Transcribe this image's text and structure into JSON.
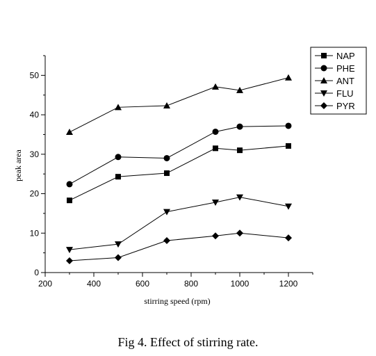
{
  "chart_data": {
    "type": "line",
    "title": "",
    "xlabel": "stirring speed (rpm)",
    "ylabel": "peak area",
    "xlim": [
      200,
      1300
    ],
    "ylim": [
      0,
      55
    ],
    "xticks": [
      200,
      400,
      600,
      800,
      1000,
      1200
    ],
    "yticks": [
      0,
      10,
      20,
      30,
      40,
      50
    ],
    "grid": false,
    "legend_position": "top-right",
    "x": [
      300,
      500,
      700,
      900,
      1000,
      1200
    ],
    "series": [
      {
        "name": "NAP",
        "marker": "square",
        "values": [
          18.3,
          24.3,
          25.2,
          31.5,
          31.0,
          32.1
        ]
      },
      {
        "name": "PHE",
        "marker": "circle",
        "values": [
          22.4,
          29.3,
          29.0,
          35.7,
          37.0,
          37.2
        ]
      },
      {
        "name": "ANT",
        "marker": "triangle-up",
        "values": [
          35.6,
          41.9,
          42.3,
          47.1,
          46.2,
          49.4
        ]
      },
      {
        "name": "FLU",
        "marker": "triangle-down",
        "values": [
          5.8,
          7.2,
          15.4,
          17.8,
          19.1,
          16.8
        ]
      },
      {
        "name": "PYR",
        "marker": "diamond",
        "values": [
          3.0,
          3.8,
          8.1,
          9.3,
          10.0,
          8.8
        ]
      }
    ]
  },
  "caption": "Fig 4. Effect of stirring rate."
}
